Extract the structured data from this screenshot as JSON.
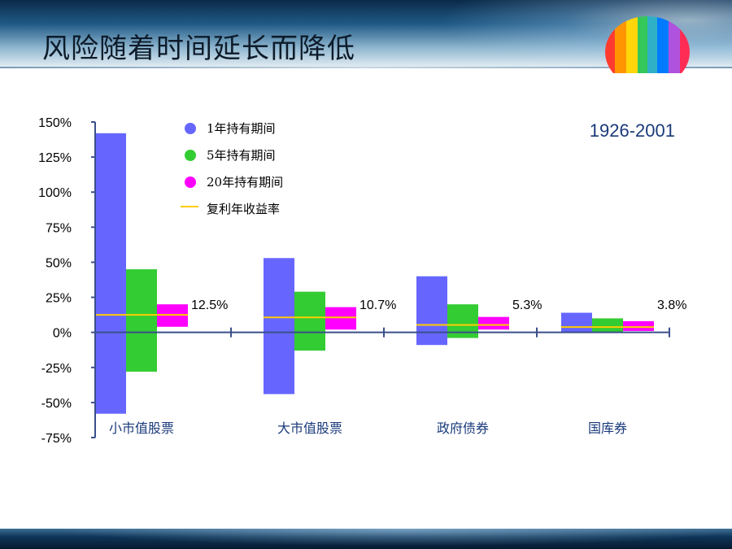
{
  "slide": {
    "title": "风险随着时间延长而降低"
  },
  "chart_data": {
    "type": "bar",
    "subtype": "floating-range",
    "period": "1926-2001",
    "y_ticks": [
      "150%",
      "125%",
      "100%",
      "75%",
      "50%",
      "25%",
      "0%",
      "-25%",
      "-50%",
      "-75%"
    ],
    "ylim": [
      -75,
      150
    ],
    "categories": [
      "小市值股票",
      "大市值股票",
      "政府债券",
      "国库券"
    ],
    "series": [
      {
        "name": "1年持有期间",
        "color": "#6666ff",
        "ranges": [
          [
            -58,
            142
          ],
          [
            -44,
            53
          ],
          [
            -9,
            40
          ],
          [
            0,
            14
          ]
        ]
      },
      {
        "name": "5年持有期间",
        "color": "#33cc33",
        "ranges": [
          [
            -28,
            45
          ],
          [
            -13,
            29
          ],
          [
            -4,
            20
          ],
          [
            0,
            10
          ]
        ]
      },
      {
        "name": "20年持有期间",
        "color": "#ff00ff",
        "ranges": [
          [
            4,
            20
          ],
          [
            2,
            18
          ],
          [
            2,
            11
          ],
          [
            1,
            8
          ]
        ]
      }
    ],
    "compound_rate": {
      "name": "复利年收益率",
      "color": "#ffcc00",
      "values": [
        12.5,
        10.7,
        5.3,
        3.8
      ],
      "labels": [
        "12.5%",
        "10.7%",
        "5.3%",
        "3.8%"
      ]
    },
    "legend_position": "top-left",
    "grid": false
  }
}
